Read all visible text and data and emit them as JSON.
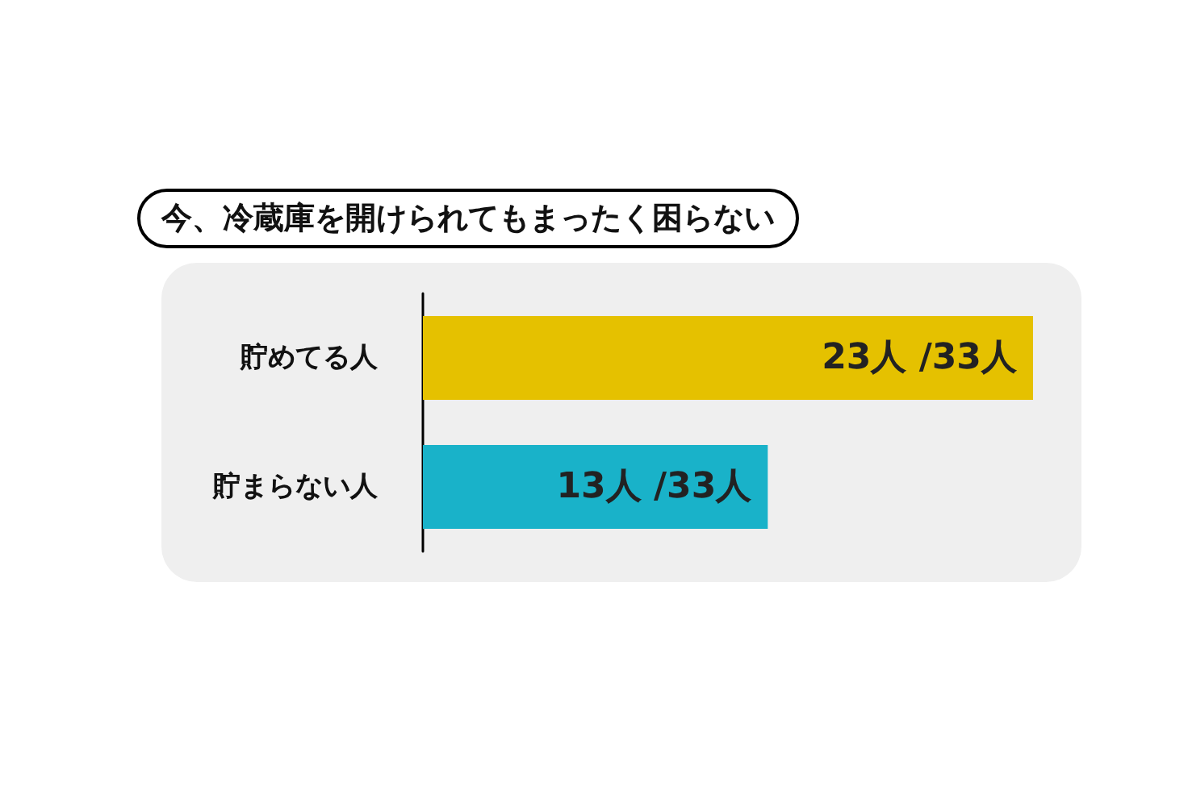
{
  "chart_data": {
    "type": "bar",
    "orientation": "horizontal",
    "title": "今、冷蔵庫を開けられてもまったく困らない",
    "categories": [
      "貯めてる人",
      "貯まらない人"
    ],
    "values": [
      23,
      13
    ],
    "colors": [
      "#e5c100",
      "#19b2c9"
    ],
    "value_labels": [
      "23人 /33人",
      "13人 /33人"
    ]
  }
}
